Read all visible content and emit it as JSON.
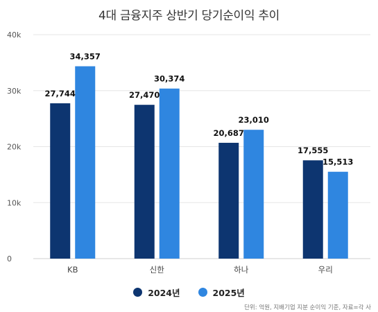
{
  "chart_data": {
    "type": "bar",
    "title": "4대 금융지주 상반기 당기순이익 추이",
    "categories": [
      "KB",
      "신한",
      "하나",
      "우리"
    ],
    "series": [
      {
        "name": "2024년",
        "values": [
          27744,
          27470,
          20687,
          17555
        ],
        "labels": [
          "27,744",
          "27,470",
          "20,687",
          "17,555"
        ],
        "color": "#0d3570"
      },
      {
        "name": "2025년",
        "values": [
          34357,
          30374,
          23010,
          15513
        ],
        "labels": [
          "34,357",
          "30,374",
          "23,010",
          "15,513"
        ],
        "color": "#2f86e0"
      }
    ],
    "ylim": [
      0,
      40000
    ],
    "y_ticks": [
      0,
      10000,
      20000,
      30000,
      40000
    ],
    "y_tick_labels": [
      "0",
      "10k",
      "20k",
      "30k",
      "40k"
    ],
    "grid": true,
    "legend_position": "bottom-center",
    "source_note": "단위: 억원, 지배기업 지분 순이익 기준, 자료=각 사"
  }
}
